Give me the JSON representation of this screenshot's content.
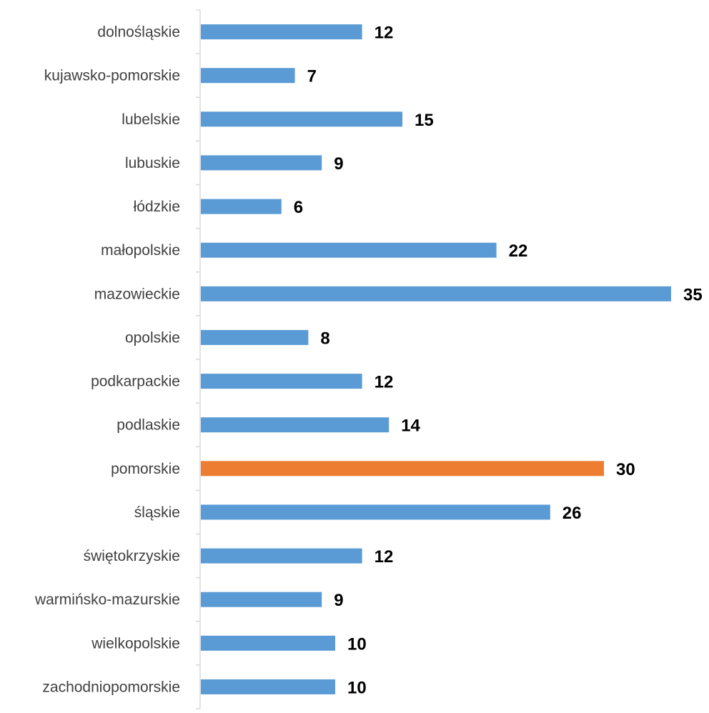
{
  "chart_data": {
    "type": "bar",
    "orientation": "horizontal",
    "title": "",
    "xlabel": "",
    "ylabel": "",
    "xlim": [
      0,
      35
    ],
    "grid": false,
    "legend": "none",
    "categories": [
      "dolnośląskie",
      "kujawsko-pomorskie",
      "lubelskie",
      "lubuskie",
      "łódzkie",
      "małopolskie",
      "mazowieckie",
      "opolskie",
      "podkarpackie",
      "podlaskie",
      "pomorskie",
      "śląskie",
      "świętokrzyskie",
      "warmińsko-mazurskie",
      "wielkopolskie",
      "zachodniopomorskie"
    ],
    "values": [
      12,
      7,
      15,
      9,
      6,
      22,
      35,
      8,
      12,
      14,
      30,
      26,
      12,
      9,
      10,
      10
    ],
    "highlight_index": 10,
    "colors": {
      "bar": "#5b9bd5",
      "highlight": "#ed7d31",
      "axis": "#d9d9d9",
      "category_text": "#404040",
      "value_text": "#000000"
    }
  }
}
